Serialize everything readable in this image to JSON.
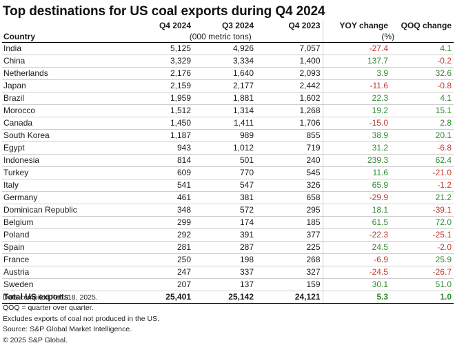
{
  "title": "Top destinations for US coal exports during Q4 2024",
  "columns": [
    "Q4 2024",
    "Q3 2024",
    "Q4 2023",
    "YOY change",
    "QOQ change"
  ],
  "row_header": "Country",
  "units_volume": "(000 metric tons)",
  "units_pct": "(%)",
  "rows": [
    {
      "country": "India",
      "q4_2024": "5,125",
      "q3_2024": "4,926",
      "q4_2023": "7,057",
      "yoy": "-27.4",
      "qoq": "4.1"
    },
    {
      "country": "China",
      "q4_2024": "3,329",
      "q3_2024": "3,334",
      "q4_2023": "1,400",
      "yoy": "137.7",
      "qoq": "-0.2"
    },
    {
      "country": "Netherlands",
      "q4_2024": "2,176",
      "q3_2024": "1,640",
      "q4_2023": "2,093",
      "yoy": "3.9",
      "qoq": "32.6"
    },
    {
      "country": "Japan",
      "q4_2024": "2,159",
      "q3_2024": "2,177",
      "q4_2023": "2,442",
      "yoy": "-11.6",
      "qoq": "-0.8"
    },
    {
      "country": "Brazil",
      "q4_2024": "1,959",
      "q3_2024": "1,881",
      "q4_2023": "1,602",
      "yoy": "22.3",
      "qoq": "4.1"
    },
    {
      "country": "Morocco",
      "q4_2024": "1,512",
      "q3_2024": "1,314",
      "q4_2023": "1,268",
      "yoy": "19.2",
      "qoq": "15.1"
    },
    {
      "country": "Canada",
      "q4_2024": "1,450",
      "q3_2024": "1,411",
      "q4_2023": "1,706",
      "yoy": "-15.0",
      "qoq": "2.8"
    },
    {
      "country": "South Korea",
      "q4_2024": "1,187",
      "q3_2024": "989",
      "q4_2023": "855",
      "yoy": "38.9",
      "qoq": "20.1"
    },
    {
      "country": "Egypt",
      "q4_2024": "943",
      "q3_2024": "1,012",
      "q4_2023": "719",
      "yoy": "31.2",
      "qoq": "-6.8"
    },
    {
      "country": "Indonesia",
      "q4_2024": "814",
      "q3_2024": "501",
      "q4_2023": "240",
      "yoy": "239.3",
      "qoq": "62.4"
    },
    {
      "country": "Turkey",
      "q4_2024": "609",
      "q3_2024": "770",
      "q4_2023": "545",
      "yoy": "11.6",
      "qoq": "-21.0"
    },
    {
      "country": "Italy",
      "q4_2024": "541",
      "q3_2024": "547",
      "q4_2023": "326",
      "yoy": "65.9",
      "qoq": "-1.2"
    },
    {
      "country": "Germany",
      "q4_2024": "461",
      "q3_2024": "381",
      "q4_2023": "658",
      "yoy": "-29.9",
      "qoq": "21.2"
    },
    {
      "country": "Dominican Republic",
      "q4_2024": "348",
      "q3_2024": "572",
      "q4_2023": "295",
      "yoy": "18.1",
      "qoq": "-39.1"
    },
    {
      "country": "Belgium",
      "q4_2024": "299",
      "q3_2024": "174",
      "q4_2023": "185",
      "yoy": "61.5",
      "qoq": "72.0"
    },
    {
      "country": "Poland",
      "q4_2024": "292",
      "q3_2024": "391",
      "q4_2023": "377",
      "yoy": "-22.3",
      "qoq": "-25.1"
    },
    {
      "country": "Spain",
      "q4_2024": "281",
      "q3_2024": "287",
      "q4_2023": "225",
      "yoy": "24.5",
      "qoq": "-2.0"
    },
    {
      "country": "France",
      "q4_2024": "250",
      "q3_2024": "198",
      "q4_2023": "268",
      "yoy": "-6.9",
      "qoq": "25.9"
    },
    {
      "country": "Austria",
      "q4_2024": "247",
      "q3_2024": "337",
      "q4_2023": "327",
      "yoy": "-24.5",
      "qoq": "-26.7"
    },
    {
      "country": "Sweden",
      "q4_2024": "207",
      "q3_2024": "137",
      "q4_2023": "159",
      "yoy": "30.1",
      "qoq": "51.0"
    }
  ],
  "total": {
    "country": "Total US exports",
    "q4_2024": "25,401",
    "q3_2024": "25,142",
    "q4_2023": "24,121",
    "yoy": "5.3",
    "qoq": "1.0"
  },
  "notes": [
    "Data compiled Feb. 18, 2025.",
    "QOQ = quarter over quarter.",
    "Excludes exports of coal not produced in the US.",
    "Source: S&P Global Market Intelligence.",
    "© 2025 S&P Global."
  ],
  "colors": {
    "positive": "#2f8a2f",
    "negative": "#c0392b"
  }
}
